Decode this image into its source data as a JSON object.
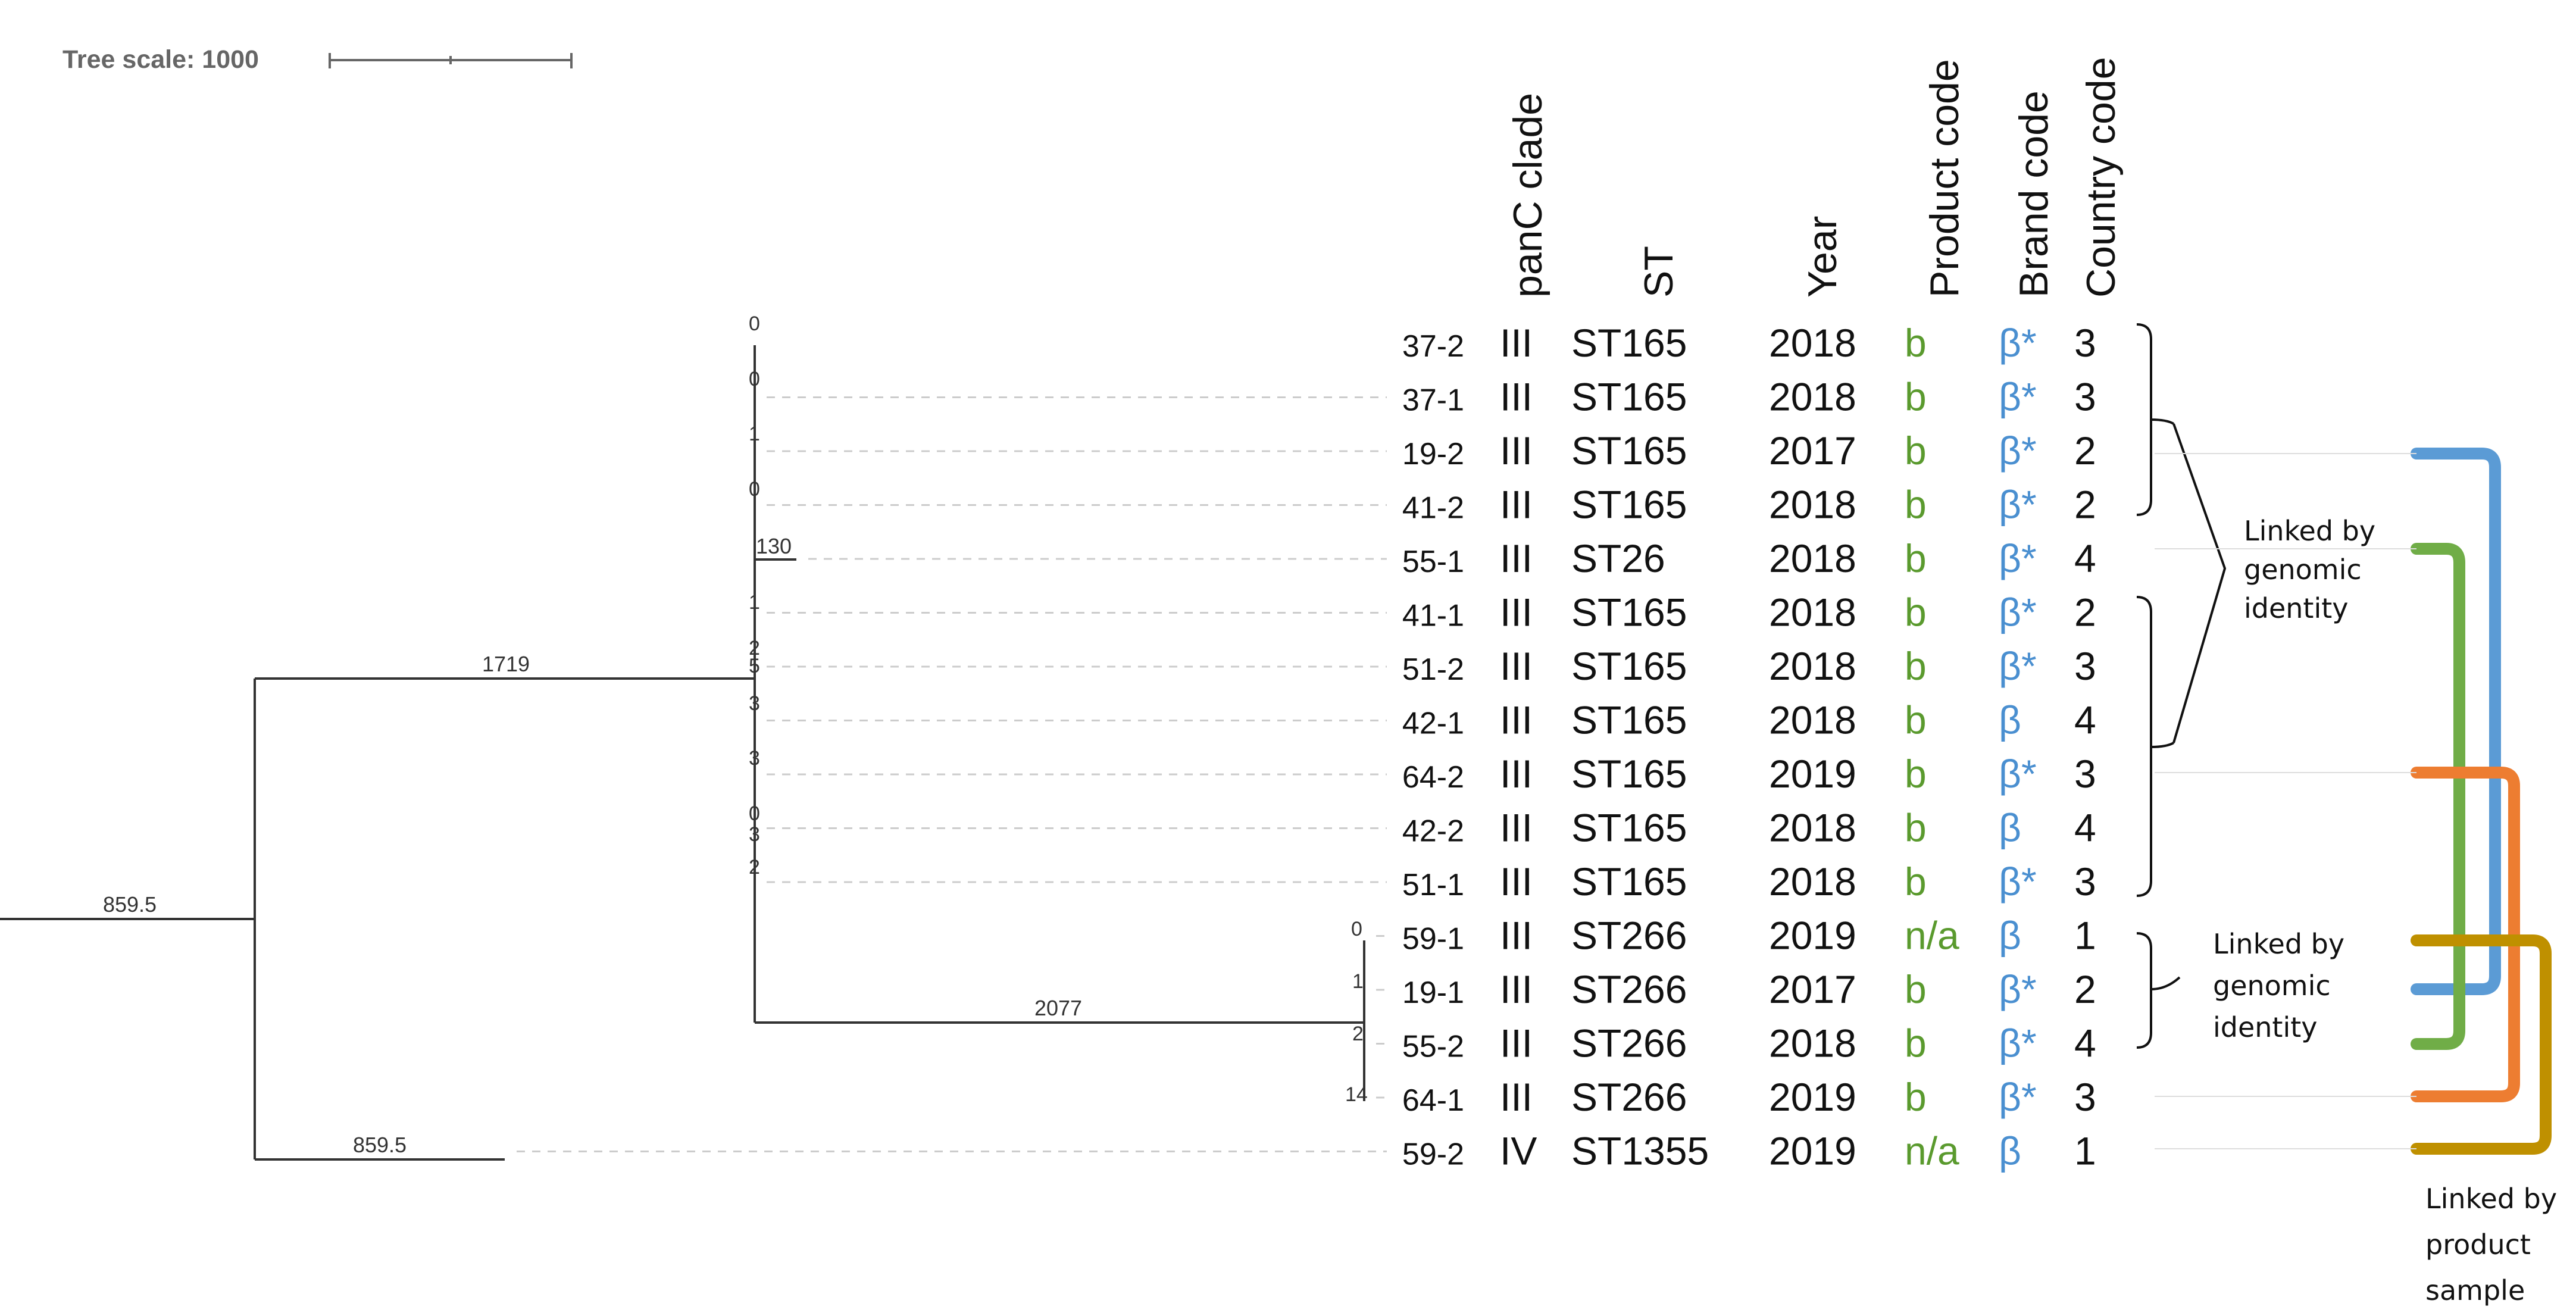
{
  "tree_scale": {
    "label": "Tree scale: 1000"
  },
  "branch_labels": {
    "root": "859.5",
    "upper_clade": "1719",
    "lower_outgroup": "859.5",
    "st266_clade": "2077",
    "st26_leaf": "130"
  },
  "node_labels_upper": [
    "0",
    "0",
    "1",
    "0",
    "1",
    "2",
    "5",
    "3",
    "3",
    "0",
    "3",
    "2"
  ],
  "node_labels_lower": [
    "0",
    "1",
    "2",
    "14"
  ],
  "columns": {
    "panc_clade": "panC clade",
    "st": "ST",
    "year": "Year",
    "product_code": "Product code",
    "brand_code": "Brand code",
    "country_code": "Country code"
  },
  "rows": [
    {
      "id": "37-2",
      "clade": "III",
      "st": "ST165",
      "year": "2018",
      "product": "b",
      "brand": "β*",
      "country": "3"
    },
    {
      "id": "37-1",
      "clade": "III",
      "st": "ST165",
      "year": "2018",
      "product": "b",
      "brand": "β*",
      "country": "3"
    },
    {
      "id": "19-2",
      "clade": "III",
      "st": "ST165",
      "year": "2017",
      "product": "b",
      "brand": "β*",
      "country": "2"
    },
    {
      "id": "41-2",
      "clade": "III",
      "st": "ST165",
      "year": "2018",
      "product": "b",
      "brand": "β*",
      "country": "2"
    },
    {
      "id": "55-1",
      "clade": "III",
      "st": "ST26",
      "year": "2018",
      "product": "b",
      "brand": "β*",
      "country": "4"
    },
    {
      "id": "41-1",
      "clade": "III",
      "st": "ST165",
      "year": "2018",
      "product": "b",
      "brand": "β*",
      "country": "2"
    },
    {
      "id": "51-2",
      "clade": "III",
      "st": "ST165",
      "year": "2018",
      "product": "b",
      "brand": "β*",
      "country": "3"
    },
    {
      "id": "42-1",
      "clade": "III",
      "st": "ST165",
      "year": "2018",
      "product": "b",
      "brand": "β",
      "country": "4"
    },
    {
      "id": "64-2",
      "clade": "III",
      "st": "ST165",
      "year": "2019",
      "product": "b",
      "brand": "β*",
      "country": "3"
    },
    {
      "id": "42-2",
      "clade": "III",
      "st": "ST165",
      "year": "2018",
      "product": "b",
      "brand": "β",
      "country": "4"
    },
    {
      "id": "51-1",
      "clade": "III",
      "st": "ST165",
      "year": "2018",
      "product": "b",
      "brand": "β*",
      "country": "3"
    },
    {
      "id": "59-1",
      "clade": "III",
      "st": "ST266",
      "year": "2019",
      "product": "n/a",
      "brand": "β",
      "country": "1"
    },
    {
      "id": "19-1",
      "clade": "III",
      "st": "ST266",
      "year": "2017",
      "product": "b",
      "brand": "β*",
      "country": "2"
    },
    {
      "id": "55-2",
      "clade": "III",
      "st": "ST266",
      "year": "2018",
      "product": "b",
      "brand": "β*",
      "country": "4"
    },
    {
      "id": "64-1",
      "clade": "III",
      "st": "ST266",
      "year": "2019",
      "product": "b",
      "brand": "β*",
      "country": "3"
    },
    {
      "id": "59-2",
      "clade": "IV",
      "st": "ST1355",
      "year": "2019",
      "product": "n/a",
      "brand": "β",
      "country": "1"
    }
  ],
  "annotations": {
    "genomic_identity_upper": [
      "Linked by",
      "genomic",
      "identity"
    ],
    "genomic_identity_lower": [
      "Linked by",
      "genomic",
      "identity"
    ],
    "product_sample": [
      "Linked by",
      "product",
      "sample"
    ]
  },
  "colors": {
    "product_code": "#5a9a2e",
    "brand_code": "#4a8fd0",
    "link_blue": "#5b9bd5",
    "link_green": "#70ad47",
    "link_orange": "#ed7d31",
    "link_gold": "#bf9000",
    "tree": "#333333",
    "text": "#111111"
  }
}
